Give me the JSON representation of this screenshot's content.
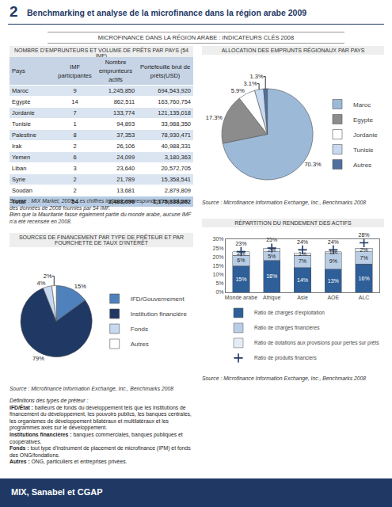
{
  "header": {
    "page_number": "2",
    "title": "Benchmarking et analyse de la microfinance dans la région arabe 2009"
  },
  "section_title": "MICROFINANCE DANS LA RÉGION ARABE : INDICATEURS CLÉS 2008",
  "table": {
    "title": "NOMBRE D’EMPRUNTEURS ET VOLUME DE PRÊTS PAR PAYS (54 IMF)",
    "columns": [
      "Pays",
      "IMF participantes",
      "Nombre emprunteurs actifs",
      "Portefeuille brut de prêts(USD)"
    ],
    "rows": [
      [
        "Maroc",
        "9",
        "1,245,850",
        "694,543,920"
      ],
      [
        "Egypte",
        "14",
        "862,511",
        "163,760,754"
      ],
      [
        "Jordanie",
        "7",
        "133,774",
        "121,135,018"
      ],
      [
        "Tunisie",
        "1",
        "94,893",
        "33,988,350"
      ],
      [
        "Palestine",
        "8",
        "37,353",
        "78,930,471"
      ],
      [
        "Irak",
        "2",
        "26,106",
        "40,988,331"
      ],
      [
        "Yemen",
        "6",
        "24,099",
        "3,180,363"
      ],
      [
        "Liban",
        "3",
        "23,640",
        "20,572,705"
      ],
      [
        "Syrie",
        "2",
        "21,789",
        "15,358,541"
      ],
      [
        "Soudan",
        "2",
        "13,681",
        "2,879,809"
      ]
    ],
    "total": [
      "Total",
      "54",
      "2,483,696",
      "1,175,338,262"
    ],
    "source": [
      "Source : MIX Market, 2009. Les chiffres indiqués correspondent aux totaux des données de 2008 fournies par 54 IMF.",
      "Bien que la Mauritanie fasse également partie du monde arabe, aucune IMF n’a été recensée en 2008."
    ]
  },
  "chart_data": [
    {
      "type": "pie",
      "title": "ALLOCATION DES EMPRUNTS RÉGIONAUX PAR PAYS",
      "categories": [
        "Maroc",
        "Egypte",
        "Jordanie",
        "Tunisie",
        "Autres"
      ],
      "values": [
        70.3,
        17.3,
        5.9,
        3.1,
        1.3
      ],
      "value_labels": [
        "70.3%",
        "17.3%",
        "5.9%",
        "3.1%",
        "1.3%"
      ],
      "colors": [
        "#9db9d8",
        "#8c8c8c",
        "#ffffff",
        "#c6d9f0",
        "#4f6f9f"
      ],
      "data_labels": true,
      "legend": "right",
      "source": "Source : Microfinance Information Exchange, Inc., Benchmarks 2008"
    },
    {
      "type": "pie",
      "title": "SOURCES DE FINANCEMENT PAR TYPE DE PRÊTEUR ET PAR FOURCHETTE DE TAUX D’INTÉRÊT",
      "categories": [
        "IFD/Gouvernement",
        "Institution financière",
        "Fonds",
        "Autres"
      ],
      "values": [
        15,
        79,
        4,
        2
      ],
      "value_labels": [
        "15%",
        "79%",
        "4%",
        "2%"
      ],
      "colors": [
        "#4f81bd",
        "#1f3864",
        "#c6d9f0",
        "#ffffff"
      ],
      "data_labels": true,
      "legend": "right",
      "source": "Source : Microfinance Information Exchange, Inc., Benchmarks 2008"
    },
    {
      "type": "bar",
      "title": "RÉPARTITION DU RENDEMENT DES ACTIFS",
      "categories": [
        "Monde arabe",
        "Afrique",
        "Asie",
        "AOE",
        "ALC"
      ],
      "stacked": true,
      "data_labels": true,
      "grid": false,
      "legend": "bottom",
      "series": [
        {
          "name": "Ratio de charges d’exploitation",
          "color": "#2f5f98",
          "values": [
            15,
            18,
            14,
            13,
            16
          ],
          "value_labels": [
            "15%",
            "18%",
            "14%",
            "13%",
            "16%"
          ]
        },
        {
          "name": "Ratio de charges financières",
          "color": "#b9cde5",
          "values": [
            6,
            5,
            7,
            9,
            7
          ],
          "value_labels": [
            "6%",
            "5%",
            "7%",
            "9%",
            "7%"
          ]
        },
        {
          "name": "Ratio de dotations aux provisions pour pertes sur prêts",
          "color": "#e4ecf6",
          "values": [
            2,
            2,
            1,
            1,
            2
          ],
          "value_labels": [
            "2%",
            "2%",
            "1%",
            "1%",
            "2%"
          ]
        },
        {
          "name": "Ratio de produits financiers",
          "type": "scatter",
          "marker": "cross",
          "color": "#1f3864",
          "values": [
            23,
            25,
            24,
            24,
            28
          ],
          "value_labels": [
            "23%",
            "25%",
            "24%",
            "24%",
            "28%"
          ]
        }
      ],
      "ylim": [
        0,
        30
      ],
      "yticks": [
        {
          "value": 0,
          "label": "0%"
        },
        {
          "value": 5,
          "label": "5%"
        },
        {
          "value": 10,
          "label": "10%"
        },
        {
          "value": 15,
          "label": "15%"
        },
        {
          "value": 20,
          "label": "20%"
        },
        {
          "value": 25,
          "label": "25%"
        },
        {
          "value": 30,
          "label": "30%"
        }
      ],
      "source": "Source : Microfinance Information Exchange, Inc., Benchmarks 2008"
    }
  ],
  "definitions": {
    "title": "Définitions des types de prêteur :",
    "items": [
      {
        "term": "IFD/État :",
        "text": "bailleurs de fonds du développement tels que les institutions de financement du développement, les pouvoirs publics, les banques centrales, les organismes de développement bilatéraux et multilatéraux et les programmes axés sur le développement."
      },
      {
        "term": "Institutions financières :",
        "text": "banques commerciales, banques publiques et coopératives."
      },
      {
        "term": "Fonds :",
        "text": "tout type d’instrument de placement de microfinance (IPM) et fonds des ONG/fondations."
      },
      {
        "term": "Autres :",
        "text": "ONG, particuliers et entreprises privées."
      }
    ]
  },
  "footer": "MIX, Sanabel et CGAP"
}
